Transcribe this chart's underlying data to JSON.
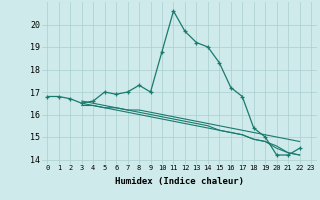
{
  "xlabel": "Humidex (Indice chaleur)",
  "background_color": "#ceeaea",
  "line_color": "#1a7a6e",
  "grid_color": "#aacece",
  "xlim": [
    -0.5,
    23.5
  ],
  "ylim": [
    13.8,
    21.0
  ],
  "yticks": [
    14,
    15,
    16,
    17,
    18,
    19,
    20
  ],
  "xticks": [
    0,
    1,
    2,
    3,
    4,
    5,
    6,
    7,
    8,
    9,
    10,
    11,
    12,
    13,
    14,
    15,
    16,
    17,
    18,
    19,
    20,
    21,
    22,
    23
  ],
  "lines": [
    {
      "x": [
        0,
        1,
        2,
        3,
        4,
        5,
        6,
        7,
        8,
        9,
        10,
        11,
        12,
        13,
        14,
        15,
        16,
        17,
        18,
        19,
        20,
        21,
        22
      ],
      "y": [
        16.8,
        16.8,
        16.7,
        16.5,
        16.6,
        17.0,
        16.9,
        17.0,
        17.3,
        17.0,
        18.8,
        20.6,
        19.7,
        19.2,
        19.0,
        18.3,
        17.2,
        16.8,
        15.4,
        15.0,
        14.2,
        14.2,
        14.5
      ],
      "marker": true
    },
    {
      "x": [
        3,
        4,
        5,
        6,
        7,
        8,
        9,
        10,
        11,
        12,
        13,
        14,
        15,
        16,
        17,
        18,
        19,
        20,
        21,
        22
      ],
      "y": [
        16.4,
        16.4,
        16.3,
        16.3,
        16.2,
        16.2,
        16.1,
        16.0,
        15.9,
        15.8,
        15.7,
        15.6,
        15.5,
        15.4,
        15.3,
        15.2,
        15.1,
        15.0,
        14.9,
        14.8
      ],
      "marker": false
    },
    {
      "x": [
        3,
        4,
        5,
        6,
        7,
        8,
        9,
        10,
        11,
        12,
        13,
        14,
        15,
        16,
        17,
        18,
        19,
        20,
        21,
        22
      ],
      "y": [
        16.5,
        16.4,
        16.3,
        16.2,
        16.1,
        16.0,
        15.9,
        15.8,
        15.7,
        15.6,
        15.5,
        15.4,
        15.3,
        15.2,
        15.1,
        14.9,
        14.8,
        14.5,
        14.3,
        14.2
      ],
      "marker": false
    },
    {
      "x": [
        3,
        4,
        5,
        6,
        7,
        8,
        9,
        10,
        11,
        12,
        13,
        14,
        15,
        16,
        17,
        18,
        19,
        20,
        21,
        22
      ],
      "y": [
        16.6,
        16.5,
        16.4,
        16.3,
        16.2,
        16.1,
        16.0,
        15.9,
        15.8,
        15.7,
        15.6,
        15.5,
        15.3,
        15.2,
        15.1,
        14.9,
        14.8,
        14.6,
        14.3,
        14.2
      ],
      "marker": false
    }
  ]
}
